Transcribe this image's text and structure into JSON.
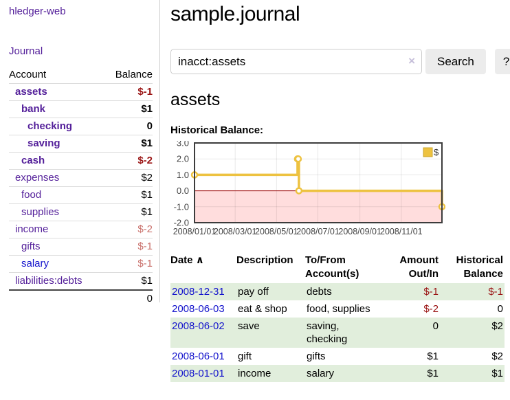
{
  "app": {
    "brand": "hledger-web",
    "nav": {
      "journal": "Journal"
    }
  },
  "colors": {
    "link_purple": "#54209a",
    "link_blue": "#1414cc",
    "negative_strong": "#9a1414",
    "negative_soft": "#c9706b",
    "row_green": "#e1eedc",
    "series_gold": "#edc240"
  },
  "sidebar": {
    "header": {
      "account": "Account",
      "balance": "Balance"
    },
    "accounts": [
      {
        "name": "assets",
        "indent": 1,
        "balance": "$-1",
        "bold": true
      },
      {
        "name": "bank",
        "indent": 2,
        "balance": "$1",
        "bold": true
      },
      {
        "name": "checking",
        "indent": 3,
        "balance": "0",
        "bold": true
      },
      {
        "name": "saving",
        "indent": 3,
        "balance": "$1",
        "bold": true
      },
      {
        "name": "cash",
        "indent": 2,
        "balance": "$-2",
        "bold": true
      },
      {
        "name": "expenses",
        "indent": 1,
        "balance": "$2",
        "bold": false
      },
      {
        "name": "food",
        "indent": 2,
        "balance": "$1",
        "bold": false
      },
      {
        "name": "supplies",
        "indent": 2,
        "balance": "$1",
        "bold": false
      },
      {
        "name": "income",
        "indent": 1,
        "balance": "$-2",
        "bold": false
      },
      {
        "name": "gifts",
        "indent": 2,
        "balance": "$-1",
        "bold": false
      },
      {
        "name": "salary",
        "indent": 2,
        "balance": "$-1",
        "bold": false,
        "link_color": "blue"
      },
      {
        "name": "liabilities:debts",
        "indent": 1,
        "balance": "$1",
        "bold": false
      }
    ],
    "total": "0"
  },
  "main": {
    "title": "sample.journal",
    "search": {
      "value": "inacct:assets",
      "clear_icon": "×",
      "search_button": "Search",
      "help_button": "?"
    },
    "account_heading": "assets"
  },
  "chart_data": {
    "type": "line",
    "step": true,
    "title": "Historical Balance:",
    "series": [
      {
        "name": "$",
        "color": "#edc240",
        "points": [
          {
            "date": "2008-01-01",
            "day": 0,
            "value": 1
          },
          {
            "date": "2008-06-01",
            "day": 152,
            "value": 2
          },
          {
            "date": "2008-06-02",
            "day": 153,
            "value": 2
          },
          {
            "date": "2008-06-03",
            "day": 154,
            "value": 0
          },
          {
            "date": "2008-12-31",
            "day": 365,
            "value": -1
          }
        ]
      }
    ],
    "xlim_days": [
      0,
      365
    ],
    "xticks": [
      {
        "day": 0,
        "label": "2008/01/01"
      },
      {
        "day": 60,
        "label": "2008/03/01"
      },
      {
        "day": 121,
        "label": "2008/05/01"
      },
      {
        "day": 182,
        "label": "2008/07/01"
      },
      {
        "day": 244,
        "label": "2008/09/01"
      },
      {
        "day": 305,
        "label": "2008/11/01"
      }
    ],
    "ylim": [
      -2,
      3
    ],
    "yticks": [
      {
        "value": 3,
        "label": "3.0"
      },
      {
        "value": 2,
        "label": "2.0"
      },
      {
        "value": 1,
        "label": "1.0"
      },
      {
        "value": 0,
        "label": "0.0"
      },
      {
        "value": -1,
        "label": "-1.0"
      },
      {
        "value": -2,
        "label": "-2.0"
      }
    ],
    "legend_position": "top-right",
    "negative_region_color": "#ffdddd",
    "zero_line_color": "#990000",
    "grid": true
  },
  "register": {
    "columns": {
      "date": "Date",
      "sort_icon": "∧",
      "description": "Description",
      "accounts": "To/From Account(s)",
      "amount": "Amount Out/In",
      "balance": "Historical Balance"
    },
    "rows": [
      {
        "date": "2008-12-31",
        "description": "pay off",
        "accounts": "debts",
        "amount": "$-1",
        "balance": "$-1"
      },
      {
        "date": "2008-06-03",
        "description": "eat & shop",
        "accounts": "food, supplies",
        "amount": "$-2",
        "balance": "0"
      },
      {
        "date": "2008-06-02",
        "description": "save",
        "accounts": "saving, checking",
        "amount": "0",
        "balance": "$2"
      },
      {
        "date": "2008-06-01",
        "description": "gift",
        "accounts": "gifts",
        "amount": "$1",
        "balance": "$2"
      },
      {
        "date": "2008-01-01",
        "description": "income",
        "accounts": "salary",
        "amount": "$1",
        "balance": "$1"
      }
    ]
  }
}
